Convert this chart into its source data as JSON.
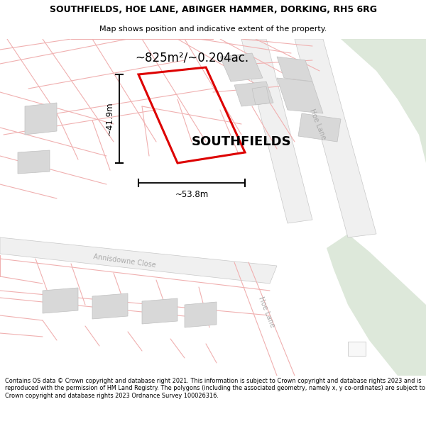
{
  "title_line1": "SOUTHFIELDS, HOE LANE, ABINGER HAMMER, DORKING, RH5 6RG",
  "title_line2": "Map shows position and indicative extent of the property.",
  "area_label": "~825m²/~0.204ac.",
  "property_label": "SOUTHFIELDS",
  "dim_width": "~53.8m",
  "dim_height": "~41.9m",
  "footer_text": "Contains OS data © Crown copyright and database right 2021. This information is subject to Crown copyright and database rights 2023 and is reproduced with the permission of HM Land Registry. The polygons (including the associated geometry, namely x, y co-ordinates) are subject to Crown copyright and database rights 2023 Ordnance Survey 100026316.",
  "map_bg": "#ffffff",
  "green_area_color": "#dde8da",
  "plot_outline_color": "#dd0000",
  "street_line_color": "#f0b0b0",
  "building_color": "#d8d8d8",
  "building_edge": "#c0c0c0",
  "road_fill": "#e8e8e8",
  "road_edge": "#c8c8c8",
  "title_color": "#000000",
  "footer_color": "#000000",
  "dim_line_color": "#000000",
  "label_color": "#000000",
  "road_label_color": "#aaaaaa"
}
